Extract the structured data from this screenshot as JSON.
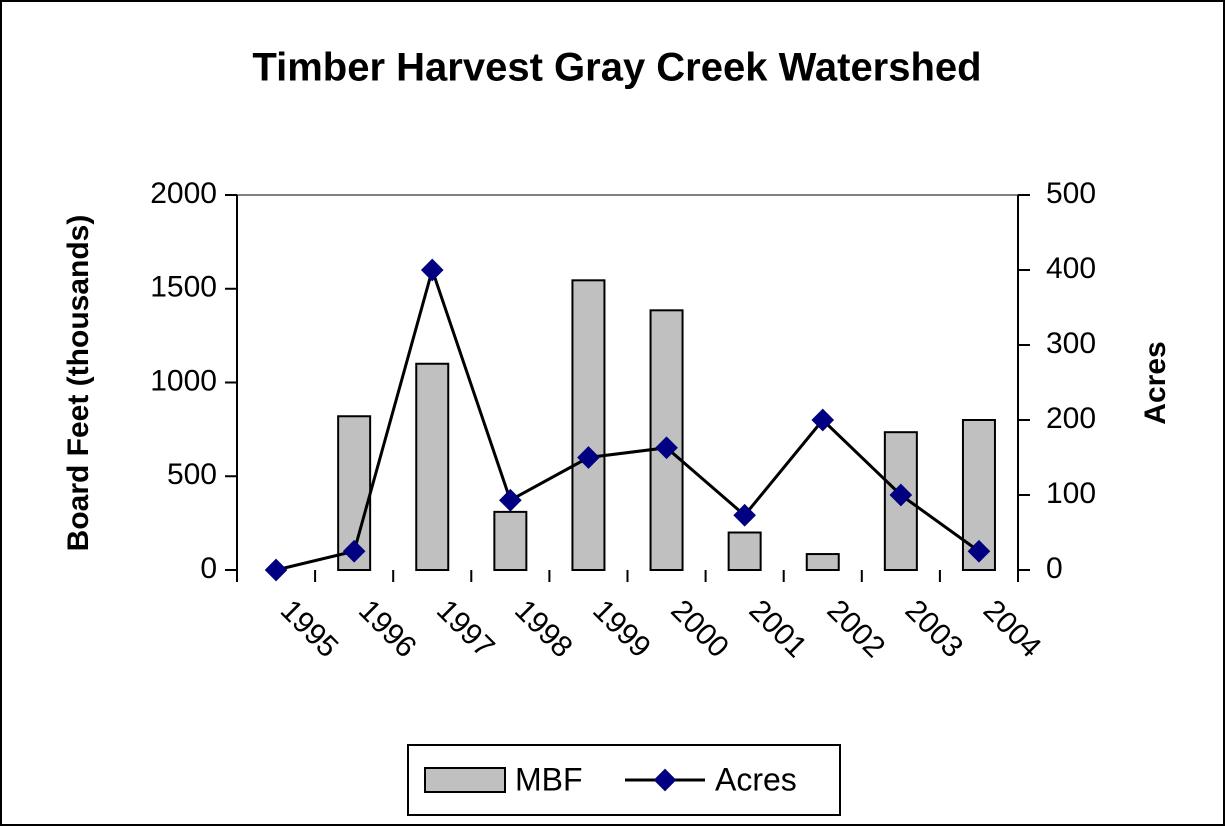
{
  "chart_data": {
    "type": "bar_line",
    "title": "Timber Harvest Gray Creek Watershed",
    "ylabel": "Board Feet (thousands)",
    "y2label": "Acres",
    "categories": [
      "1995",
      "1996",
      "1997",
      "1998",
      "1999",
      "2000",
      "2001",
      "2002",
      "2003",
      "2004"
    ],
    "series": [
      {
        "name": "MBF",
        "type": "bar",
        "color": "#c0c0c0",
        "values": [
          null,
          820,
          1100,
          310,
          1545,
          1385,
          200,
          85,
          735,
          800
        ]
      },
      {
        "name": "Acres",
        "type": "line",
        "axis": "y2",
        "color": "#000080",
        "values": [
          0,
          25,
          400,
          93,
          150,
          163,
          73,
          200,
          100,
          25
        ]
      }
    ],
    "ylim": [
      0,
      2000
    ],
    "yticks": [
      0,
      500,
      1000,
      1500,
      2000
    ],
    "y2lim": [
      0,
      500
    ],
    "y2ticks": [
      0,
      100,
      200,
      300,
      400,
      500
    ],
    "legend": "bottom"
  }
}
